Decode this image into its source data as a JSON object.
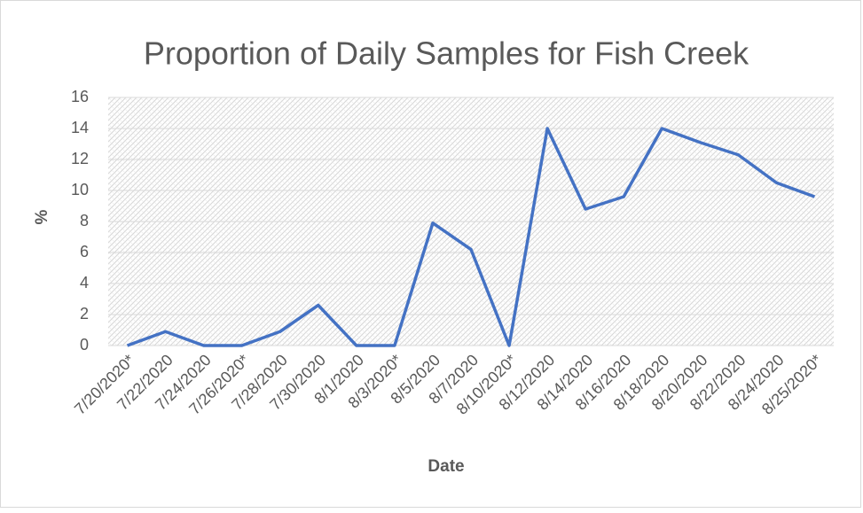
{
  "chart_data": {
    "type": "line",
    "title": "Proportion of Daily Samples for Fish Creek",
    "x_label": "Date",
    "y_label": "%",
    "categories": [
      "7/20/2020*",
      "7/22/2020",
      "7/24/2020",
      "7/26/2020*",
      "7/28/2020",
      "7/30/2020",
      "8/1/2020",
      "8/3/2020*",
      "8/5/2020",
      "8/7/2020",
      "8/10/2020*",
      "8/12/2020",
      "8/14/2020",
      "8/16/2020",
      "8/18/2020",
      "8/20/2020",
      "8/22/2020",
      "8/24/2020",
      "8/25/2020*"
    ],
    "series": [
      {
        "name": "Proportion",
        "color": "#4472c4",
        "values": [
          0,
          0.9,
          0,
          0,
          0.9,
          2.6,
          0,
          0,
          7.9,
          6.2,
          0,
          14,
          8.8,
          9.6,
          14,
          13.1,
          12.3,
          10.5,
          9.6
        ]
      }
    ],
    "ylim": [
      0,
      16
    ],
    "yticks": [
      0,
      2,
      4,
      6,
      8,
      10,
      12,
      14,
      16
    ],
    "grid": true
  }
}
